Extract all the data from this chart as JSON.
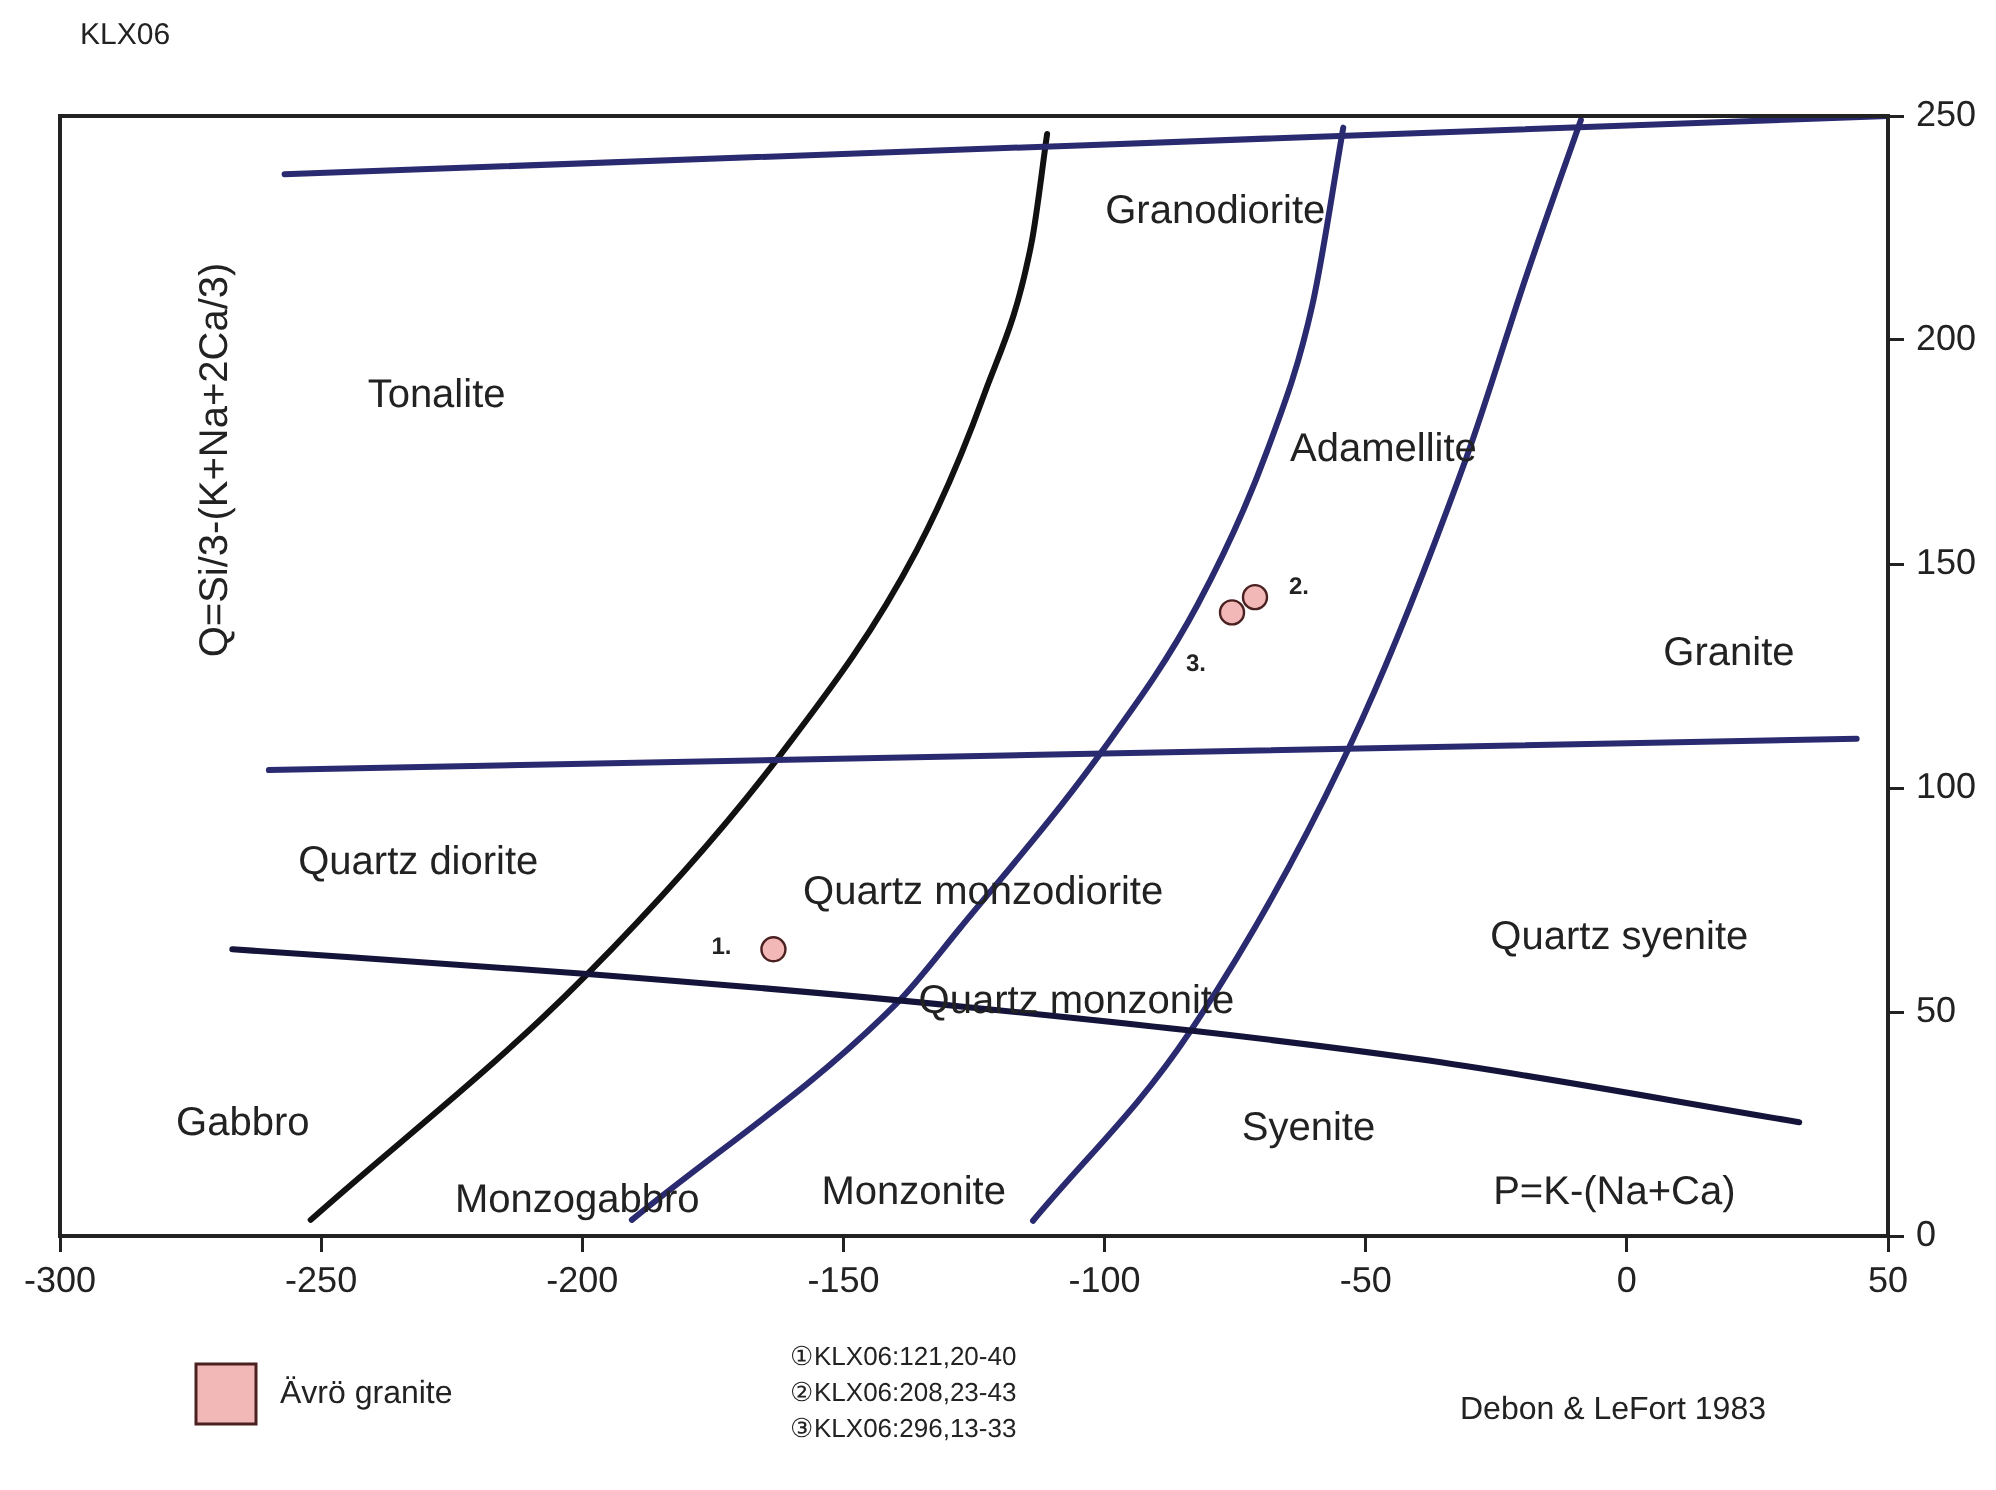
{
  "chart_data": {
    "type": "scatter",
    "title": "KLX06",
    "xlabel": "P=K-(Na+Ca)",
    "ylabel": "Q=Si/3-(K+Na+2Ca/3)",
    "xlim": [
      -300,
      50
    ],
    "xticks": [
      -300,
      -250,
      -200,
      -150,
      -100,
      -50,
      0,
      50
    ],
    "ylim": [
      0,
      250
    ],
    "yticks": [
      0,
      50,
      100,
      150,
      200,
      250
    ],
    "grid": false,
    "legend": "bottom left",
    "marker": "circle",
    "series": [
      {
        "name": "Ävrö granite",
        "color": "#f2b8b8",
        "x": [
          -163.4,
          -71.2,
          -75.6
        ],
        "values": [
          64,
          142.6,
          139.2
        ]
      },
      {
        "type": "line",
        "marker": "none",
        "color": "#2a2a70",
        "x": [
          -257,
          50
        ],
        "values": [
          237,
          250
        ]
      },
      {
        "type": "line",
        "marker": "none",
        "color": "#2a2a70",
        "x": [
          -260,
          44
        ],
        "values": [
          104,
          111
        ]
      },
      {
        "type": "line",
        "marker": "none",
        "color": "#14143a",
        "x": [
          -267,
          -199,
          -128,
          -40,
          33
        ],
        "values": [
          64,
          58.5,
          51.3,
          39.5,
          25.4
        ]
      },
      {
        "type": "line",
        "marker": "none",
        "color": "#111111",
        "x": [
          -252,
          -199,
          -162,
          -136,
          -123,
          -114,
          -111
        ],
        "values": [
          3.6,
          58.5,
          107.5,
          153,
          188,
          221.6,
          246
        ]
      },
      {
        "type": "line",
        "marker": "none",
        "color": "#2a2a70",
        "x": [
          -190.5,
          -140,
          -127.7,
          -100.5,
          -82.2,
          -68.9,
          -60.2,
          -54.3
        ],
        "values": [
          3.6,
          51.7,
          68.7,
          108.2,
          140.9,
          175.2,
          207.9,
          247.4
        ]
      },
      {
        "type": "line",
        "marker": "none",
        "color": "#2a2a70",
        "x": [
          -113.7,
          -83.7,
          -52.8,
          -30.8,
          -19.1,
          -8.8
        ],
        "values": [
          3.4,
          45.5,
          110,
          173.5,
          214.8,
          249.1
        ]
      }
    ],
    "annotations": [
      "Tonalite",
      "Granodiorite",
      "Adamellite",
      "Granite",
      "Quartz diorite",
      "Quartz monzodiorite",
      "Quartz syenite",
      "Quartz monzonite",
      "Syenite",
      "Gabbro",
      "Monzogabbro",
      "Monzonite",
      {
        "text": "1.",
        "x": -163.4,
        "y": 64
      },
      {
        "text": "2.",
        "x": -71.2,
        "y": 142.6
      },
      {
        "text": "3.",
        "x": -75.6,
        "y": 139.2
      },
      "①KLX06:121,20-40",
      "②KLX06:208,23-43",
      "③KLX06:296,13-33",
      "Debon & LeFort 1983"
    ]
  }
}
